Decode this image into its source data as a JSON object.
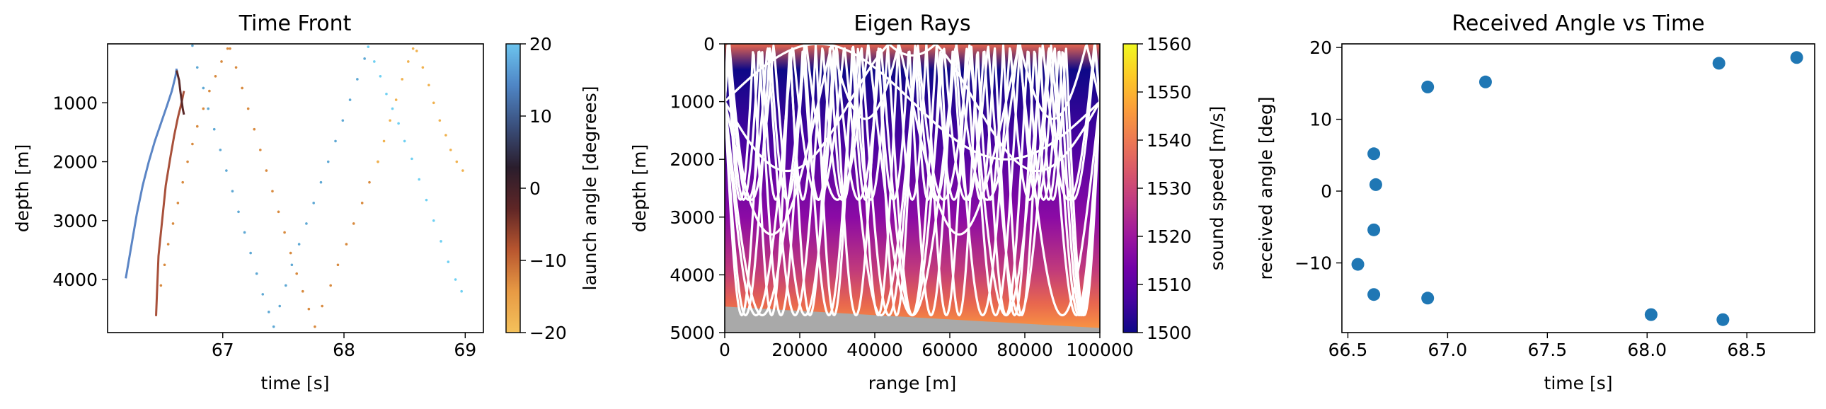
{
  "figure": {
    "background": "#ffffff"
  },
  "chart_data": [
    {
      "type": "scatter",
      "title": "Time Front",
      "xlabel": "time [s]",
      "ylabel": "depth [m]",
      "xlim": [
        66.05,
        69.15
      ],
      "ylim": [
        4900,
        0
      ],
      "yinverted": true,
      "xticks": [
        "67",
        "68",
        "69"
      ],
      "yticks": [
        "1000",
        "2000",
        "3000",
        "4000"
      ],
      "grid": false,
      "colorbar": {
        "label": "launch angle [degrees]",
        "range": [
          -20,
          20
        ],
        "ticks": [
          "−20",
          "−10",
          "0",
          "10",
          "20"
        ],
        "colors": [
          "#f4c15b",
          "#e79a44",
          "#b8562f",
          "#5f2626",
          "#2a1d2c",
          "#3a4f7c",
          "#4f86c6",
          "#6cc4ee"
        ]
      },
      "series": [
        {
          "color": "#5b85c5",
          "style": "line",
          "x": [
            66.2,
            66.24,
            66.29,
            66.34,
            66.39,
            66.44,
            66.49,
            66.54,
            66.58,
            66.61,
            66.62
          ],
          "y": [
            3980,
            3500,
            2900,
            2400,
            2000,
            1650,
            1350,
            1050,
            800,
            550,
            420
          ]
        },
        {
          "color": "#a8503a",
          "style": "line",
          "x": [
            66.45,
            66.46,
            66.47,
            66.5,
            66.53,
            66.57,
            66.6,
            66.63,
            66.66,
            66.68
          ],
          "y": [
            4620,
            4100,
            3600,
            3000,
            2400,
            1900,
            1550,
            1250,
            1000,
            800
          ]
        },
        {
          "color": "#5a2828",
          "style": "line",
          "x": [
            66.62,
            66.64,
            66.65,
            66.66,
            66.67,
            66.68
          ],
          "y": [
            450,
            620,
            800,
            950,
            1100,
            1200
          ]
        },
        {
          "color": "#d88a3e",
          "style": "dots",
          "x": [
            66.49,
            66.52,
            66.55,
            66.59,
            66.63,
            66.67,
            66.71,
            66.75,
            66.79,
            66.84,
            66.89,
            66.94,
            66.99,
            67.04,
            67.06,
            67.11,
            67.16,
            67.21,
            67.26,
            67.31,
            67.36,
            67.41,
            67.46,
            67.51,
            67.56,
            67.61,
            67.66,
            67.71,
            67.76,
            67.82,
            67.89,
            67.95,
            68.02,
            68.08,
            68.15,
            68.21,
            68.28
          ],
          "y": [
            4100,
            3750,
            3400,
            3050,
            2700,
            2350,
            2000,
            1700,
            1400,
            1100,
            800,
            550,
            300,
            80,
            80,
            400,
            750,
            1100,
            1450,
            1800,
            2150,
            2500,
            2850,
            3200,
            3550,
            3900,
            4200,
            4500,
            4800,
            4450,
            4100,
            3750,
            3400,
            3050,
            2700,
            2350,
            2000
          ]
        },
        {
          "color": "#f0b24f",
          "style": "dots",
          "x": [
            68.28,
            68.33,
            68.38,
            68.43,
            68.48,
            68.53,
            68.57,
            68.6,
            68.65,
            68.7,
            68.74,
            68.79,
            68.84,
            68.88,
            68.93,
            68.98
          ],
          "y": [
            2000,
            1650,
            1300,
            950,
            600,
            300,
            80,
            120,
            400,
            700,
            1000,
            1300,
            1550,
            1800,
            2000,
            2150
          ]
        },
        {
          "color": "#5ea8d4",
          "style": "dots",
          "x": [
            66.75,
            66.79,
            66.84,
            66.88,
            66.93,
            66.98,
            67.03,
            67.08,
            67.13,
            67.18,
            67.23,
            67.28,
            67.33,
            67.38,
            67.42,
            67.47,
            67.52,
            67.57,
            67.63,
            67.69,
            67.75,
            67.81,
            67.87,
            67.93,
            67.99,
            68.05,
            68.11,
            68.17
          ],
          "y": [
            30,
            400,
            750,
            1100,
            1450,
            1800,
            2150,
            2500,
            2850,
            3200,
            3550,
            3900,
            4250,
            4550,
            4800,
            4450,
            4100,
            3750,
            3400,
            3050,
            2700,
            2350,
            2000,
            1650,
            1300,
            950,
            600,
            250
          ]
        },
        {
          "color": "#6fd0f2",
          "style": "dots",
          "x": [
            68.2,
            68.25,
            68.3,
            68.35,
            68.4,
            68.45,
            68.5,
            68.56,
            68.62,
            68.68,
            68.74,
            68.8,
            68.86,
            68.92,
            68.97
          ],
          "y": [
            50,
            300,
            550,
            850,
            1100,
            1350,
            1650,
            1950,
            2300,
            2650,
            3000,
            3350,
            3700,
            4000,
            4200
          ]
        }
      ]
    },
    {
      "type": "heatmap",
      "title": "Eigen Rays",
      "xlabel": "range [m]",
      "ylabel": "depth [m]",
      "xlim": [
        0,
        100000
      ],
      "ylim": [
        5000,
        0
      ],
      "yinverted": true,
      "xticks": [
        "0",
        "20000",
        "40000",
        "60000",
        "80000",
        "100000"
      ],
      "yticks": [
        "0",
        "1000",
        "2000",
        "3000",
        "4000",
        "5000"
      ],
      "grid": false,
      "sound_speed_colors": [
        "#e8674e",
        "#0d0887",
        "#4b03a1",
        "#8b0aa5",
        "#c0397c",
        "#e8674e",
        "#fb9b41"
      ],
      "seabed": {
        "color": "#a9a9a9",
        "depth_at_0": 4550,
        "depth_at_100000": 4920
      },
      "colorbar": {
        "label": "sound speed [m/s]",
        "range": [
          1500,
          1560
        ],
        "ticks": [
          "1500",
          "1510",
          "1520",
          "1530",
          "1540",
          "1550",
          "1560"
        ],
        "colors": [
          "#0d0887",
          "#46039f",
          "#7201a8",
          "#9c179e",
          "#bd3786",
          "#d8576b",
          "#ed7953",
          "#fb9f3a",
          "#fdca26",
          "#f0f921"
        ]
      },
      "ray_color": "#ffffff",
      "source_depth": 1000,
      "receiver_depth": 1000,
      "rays": [
        {
          "amplitude": 1000,
          "half_period": 50000,
          "sign": -1
        },
        {
          "amplitude": 1200,
          "half_period": 33333,
          "sign": 1
        },
        {
          "amplitude": 2300,
          "half_period": 25000,
          "sign": 1
        },
        {
          "amplitude": 3700,
          "half_period": 20000,
          "sign": 1
        },
        {
          "amplitude": 3700,
          "half_period": 16667,
          "sign": 1
        },
        {
          "amplitude": 3700,
          "half_period": 14286,
          "sign": -1
        },
        {
          "amplitude": 3700,
          "half_period": 12500,
          "sign": -1
        },
        {
          "amplitude": 3700,
          "half_period": 11111,
          "sign": 1
        },
        {
          "amplitude": 3700,
          "half_period": 10000,
          "sign": -1
        },
        {
          "amplitude": 3700,
          "half_period": 9091,
          "sign": 1
        },
        {
          "amplitude": 3700,
          "half_period": 8333,
          "sign": -1
        }
      ]
    },
    {
      "type": "scatter",
      "title": "Received Angle vs Time",
      "xlabel": "time [s]",
      "ylabel": "received angle [deg]",
      "xlim": [
        66.47,
        68.84
      ],
      "ylim": [
        -19.7,
        20.5
      ],
      "xticks": [
        "66.5",
        "67.0",
        "67.5",
        "68.0",
        "68.5"
      ],
      "yticks": [
        "−10",
        "0",
        "10",
        "20"
      ],
      "grid": false,
      "marker_color": "#1f77b4",
      "x": [
        66.55,
        66.63,
        66.63,
        66.64,
        66.63,
        66.9,
        66.9,
        67.19,
        68.02,
        68.36,
        68.38,
        68.75
      ],
      "y": [
        -10.2,
        -14.4,
        5.2,
        0.9,
        -5.4,
        14.5,
        -14.9,
        15.2,
        -17.2,
        17.8,
        -17.9,
        18.6
      ]
    }
  ]
}
